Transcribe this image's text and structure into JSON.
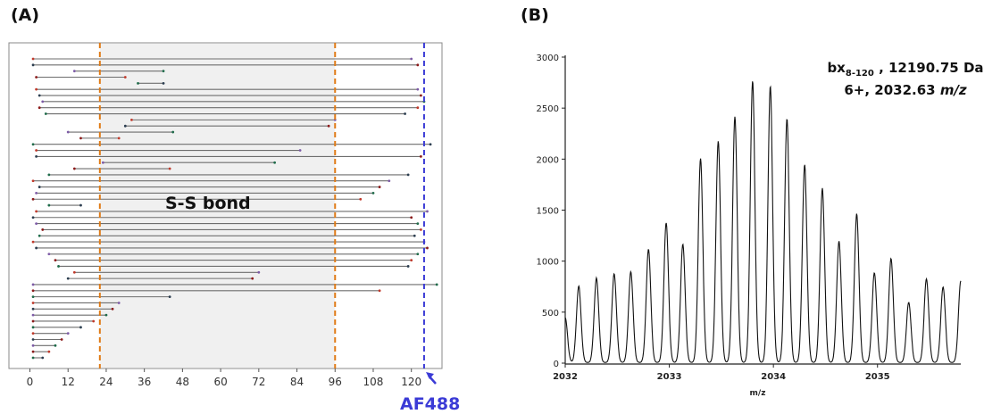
{
  "panels": {
    "a_label": "(A)",
    "b_label": "(B)"
  },
  "colors": {
    "frame": "#888888",
    "shaded_region": "#f0f0f0",
    "fragment_line": "#6e6e6e",
    "boundary_dashed": "#e07b16",
    "af488_dashed": "#3b3bd6",
    "af488_text": "#3b3bd6",
    "spectrum_line": "#111111"
  },
  "chart_data": [
    {
      "type": "range",
      "panel": "(A)",
      "annotation": "S-S bond",
      "side_label": "AF488",
      "xlim": [
        -2,
        126
      ],
      "x_ticks": [
        0,
        12,
        24,
        36,
        48,
        60,
        72,
        84,
        96,
        108,
        120
      ],
      "shaded_region": [
        22,
        96
      ],
      "boundary_lines": [
        22,
        96
      ],
      "af488_line": 124,
      "fragments": [
        [
          1,
          120
        ],
        [
          1,
          122
        ],
        [
          14,
          42
        ],
        [
          2,
          30
        ],
        [
          34,
          42
        ],
        [
          2,
          122
        ],
        [
          3,
          123
        ],
        [
          4,
          124
        ],
        [
          3,
          122
        ],
        [
          5,
          118
        ],
        [
          32,
          96
        ],
        [
          30,
          94
        ],
        [
          12,
          45
        ],
        [
          16,
          28
        ],
        [
          1,
          126
        ],
        [
          2,
          85
        ],
        [
          2,
          123
        ],
        [
          23,
          77
        ],
        [
          14,
          44
        ],
        [
          6,
          119
        ],
        [
          1,
          113
        ],
        [
          3,
          110
        ],
        [
          2,
          108
        ],
        [
          1,
          104
        ],
        [
          6,
          16
        ],
        [
          2,
          125
        ],
        [
          1,
          120
        ],
        [
          2,
          122
        ],
        [
          4,
          123
        ],
        [
          3,
          121
        ],
        [
          1,
          124
        ],
        [
          2,
          125
        ],
        [
          6,
          122
        ],
        [
          8,
          120
        ],
        [
          9,
          119
        ],
        [
          14,
          72
        ],
        [
          12,
          70
        ],
        [
          1,
          128
        ],
        [
          1,
          110
        ],
        [
          1,
          44
        ],
        [
          1,
          28
        ],
        [
          1,
          26
        ],
        [
          1,
          24
        ],
        [
          1,
          20
        ],
        [
          1,
          16
        ],
        [
          1,
          12
        ],
        [
          1,
          10
        ],
        [
          1,
          8
        ],
        [
          1,
          6
        ],
        [
          1,
          4
        ]
      ]
    },
    {
      "type": "line",
      "panel": "(B)",
      "annotation_line1": "bx",
      "annotation_subscript": "8-120",
      "annotation_line1_rest": " , 12190.75 Da",
      "annotation_line2": "6+, 2032.63 ",
      "annotation_line2_italic": "m/z",
      "xlabel": "m/z",
      "xlim": [
        2032,
        2035.8
      ],
      "ylim": [
        0,
        3000
      ],
      "x_ticks": [
        2032,
        2033,
        2034,
        2035
      ],
      "y_ticks": [
        0,
        500,
        1000,
        1500,
        2000,
        2500,
        3000
      ],
      "peak_spacing": 0.1667,
      "peaks": [
        {
          "mz": 2032.0,
          "intensity": 440
        },
        {
          "mz": 2032.13,
          "intensity": 750
        },
        {
          "mz": 2032.3,
          "intensity": 830
        },
        {
          "mz": 2032.47,
          "intensity": 870
        },
        {
          "mz": 2032.63,
          "intensity": 890
        },
        {
          "mz": 2032.8,
          "intensity": 1110
        },
        {
          "mz": 2032.97,
          "intensity": 1370
        },
        {
          "mz": 2033.13,
          "intensity": 1160
        },
        {
          "mz": 2033.3,
          "intensity": 2000
        },
        {
          "mz": 2033.47,
          "intensity": 2170
        },
        {
          "mz": 2033.63,
          "intensity": 2410
        },
        {
          "mz": 2033.8,
          "intensity": 2760
        },
        {
          "mz": 2033.97,
          "intensity": 2710
        },
        {
          "mz": 2034.13,
          "intensity": 2390
        },
        {
          "mz": 2034.3,
          "intensity": 1940
        },
        {
          "mz": 2034.47,
          "intensity": 1710
        },
        {
          "mz": 2034.63,
          "intensity": 1190
        },
        {
          "mz": 2034.8,
          "intensity": 1460
        },
        {
          "mz": 2034.97,
          "intensity": 880
        },
        {
          "mz": 2035.13,
          "intensity": 1020
        },
        {
          "mz": 2035.3,
          "intensity": 590
        },
        {
          "mz": 2035.47,
          "intensity": 820
        },
        {
          "mz": 2035.63,
          "intensity": 740
        },
        {
          "mz": 2035.8,
          "intensity": 800
        }
      ]
    }
  ]
}
